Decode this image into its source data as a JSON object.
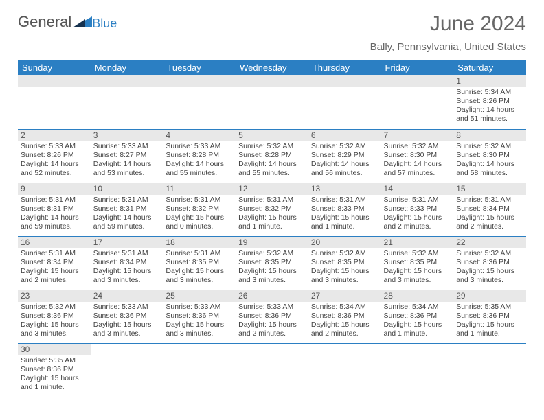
{
  "logo": {
    "text1": "General",
    "text2": "Blue"
  },
  "title": "June 2024",
  "location": "Bally, Pennsylvania, United States",
  "colors": {
    "header_bg": "#2b7fc3",
    "header_fg": "#ffffff",
    "daynum_bg": "#e8e8e8",
    "rule": "#2b7fc3",
    "title_color": "#676767"
  },
  "day_headers": [
    "Sunday",
    "Monday",
    "Tuesday",
    "Wednesday",
    "Thursday",
    "Friday",
    "Saturday"
  ],
  "weeks": [
    [
      {
        "n": "",
        "sr": "",
        "ss": "",
        "dl": ""
      },
      {
        "n": "",
        "sr": "",
        "ss": "",
        "dl": ""
      },
      {
        "n": "",
        "sr": "",
        "ss": "",
        "dl": ""
      },
      {
        "n": "",
        "sr": "",
        "ss": "",
        "dl": ""
      },
      {
        "n": "",
        "sr": "",
        "ss": "",
        "dl": ""
      },
      {
        "n": "",
        "sr": "",
        "ss": "",
        "dl": ""
      },
      {
        "n": "1",
        "sr": "Sunrise: 5:34 AM",
        "ss": "Sunset: 8:26 PM",
        "dl": "Daylight: 14 hours and 51 minutes."
      }
    ],
    [
      {
        "n": "2",
        "sr": "Sunrise: 5:33 AM",
        "ss": "Sunset: 8:26 PM",
        "dl": "Daylight: 14 hours and 52 minutes."
      },
      {
        "n": "3",
        "sr": "Sunrise: 5:33 AM",
        "ss": "Sunset: 8:27 PM",
        "dl": "Daylight: 14 hours and 53 minutes."
      },
      {
        "n": "4",
        "sr": "Sunrise: 5:33 AM",
        "ss": "Sunset: 8:28 PM",
        "dl": "Daylight: 14 hours and 55 minutes."
      },
      {
        "n": "5",
        "sr": "Sunrise: 5:32 AM",
        "ss": "Sunset: 8:28 PM",
        "dl": "Daylight: 14 hours and 55 minutes."
      },
      {
        "n": "6",
        "sr": "Sunrise: 5:32 AM",
        "ss": "Sunset: 8:29 PM",
        "dl": "Daylight: 14 hours and 56 minutes."
      },
      {
        "n": "7",
        "sr": "Sunrise: 5:32 AM",
        "ss": "Sunset: 8:30 PM",
        "dl": "Daylight: 14 hours and 57 minutes."
      },
      {
        "n": "8",
        "sr": "Sunrise: 5:32 AM",
        "ss": "Sunset: 8:30 PM",
        "dl": "Daylight: 14 hours and 58 minutes."
      }
    ],
    [
      {
        "n": "9",
        "sr": "Sunrise: 5:31 AM",
        "ss": "Sunset: 8:31 PM",
        "dl": "Daylight: 14 hours and 59 minutes."
      },
      {
        "n": "10",
        "sr": "Sunrise: 5:31 AM",
        "ss": "Sunset: 8:31 PM",
        "dl": "Daylight: 14 hours and 59 minutes."
      },
      {
        "n": "11",
        "sr": "Sunrise: 5:31 AM",
        "ss": "Sunset: 8:32 PM",
        "dl": "Daylight: 15 hours and 0 minutes."
      },
      {
        "n": "12",
        "sr": "Sunrise: 5:31 AM",
        "ss": "Sunset: 8:32 PM",
        "dl": "Daylight: 15 hours and 1 minute."
      },
      {
        "n": "13",
        "sr": "Sunrise: 5:31 AM",
        "ss": "Sunset: 8:33 PM",
        "dl": "Daylight: 15 hours and 1 minute."
      },
      {
        "n": "14",
        "sr": "Sunrise: 5:31 AM",
        "ss": "Sunset: 8:33 PM",
        "dl": "Daylight: 15 hours and 2 minutes."
      },
      {
        "n": "15",
        "sr": "Sunrise: 5:31 AM",
        "ss": "Sunset: 8:34 PM",
        "dl": "Daylight: 15 hours and 2 minutes."
      }
    ],
    [
      {
        "n": "16",
        "sr": "Sunrise: 5:31 AM",
        "ss": "Sunset: 8:34 PM",
        "dl": "Daylight: 15 hours and 2 minutes."
      },
      {
        "n": "17",
        "sr": "Sunrise: 5:31 AM",
        "ss": "Sunset: 8:34 PM",
        "dl": "Daylight: 15 hours and 3 minutes."
      },
      {
        "n": "18",
        "sr": "Sunrise: 5:31 AM",
        "ss": "Sunset: 8:35 PM",
        "dl": "Daylight: 15 hours and 3 minutes."
      },
      {
        "n": "19",
        "sr": "Sunrise: 5:32 AM",
        "ss": "Sunset: 8:35 PM",
        "dl": "Daylight: 15 hours and 3 minutes."
      },
      {
        "n": "20",
        "sr": "Sunrise: 5:32 AM",
        "ss": "Sunset: 8:35 PM",
        "dl": "Daylight: 15 hours and 3 minutes."
      },
      {
        "n": "21",
        "sr": "Sunrise: 5:32 AM",
        "ss": "Sunset: 8:35 PM",
        "dl": "Daylight: 15 hours and 3 minutes."
      },
      {
        "n": "22",
        "sr": "Sunrise: 5:32 AM",
        "ss": "Sunset: 8:36 PM",
        "dl": "Daylight: 15 hours and 3 minutes."
      }
    ],
    [
      {
        "n": "23",
        "sr": "Sunrise: 5:32 AM",
        "ss": "Sunset: 8:36 PM",
        "dl": "Daylight: 15 hours and 3 minutes."
      },
      {
        "n": "24",
        "sr": "Sunrise: 5:33 AM",
        "ss": "Sunset: 8:36 PM",
        "dl": "Daylight: 15 hours and 3 minutes."
      },
      {
        "n": "25",
        "sr": "Sunrise: 5:33 AM",
        "ss": "Sunset: 8:36 PM",
        "dl": "Daylight: 15 hours and 3 minutes."
      },
      {
        "n": "26",
        "sr": "Sunrise: 5:33 AM",
        "ss": "Sunset: 8:36 PM",
        "dl": "Daylight: 15 hours and 2 minutes."
      },
      {
        "n": "27",
        "sr": "Sunrise: 5:34 AM",
        "ss": "Sunset: 8:36 PM",
        "dl": "Daylight: 15 hours and 2 minutes."
      },
      {
        "n": "28",
        "sr": "Sunrise: 5:34 AM",
        "ss": "Sunset: 8:36 PM",
        "dl": "Daylight: 15 hours and 1 minute."
      },
      {
        "n": "29",
        "sr": "Sunrise: 5:35 AM",
        "ss": "Sunset: 8:36 PM",
        "dl": "Daylight: 15 hours and 1 minute."
      }
    ],
    [
      {
        "n": "30",
        "sr": "Sunrise: 5:35 AM",
        "ss": "Sunset: 8:36 PM",
        "dl": "Daylight: 15 hours and 1 minute."
      },
      {
        "n": "",
        "sr": "",
        "ss": "",
        "dl": ""
      },
      {
        "n": "",
        "sr": "",
        "ss": "",
        "dl": ""
      },
      {
        "n": "",
        "sr": "",
        "ss": "",
        "dl": ""
      },
      {
        "n": "",
        "sr": "",
        "ss": "",
        "dl": ""
      },
      {
        "n": "",
        "sr": "",
        "ss": "",
        "dl": ""
      },
      {
        "n": "",
        "sr": "",
        "ss": "",
        "dl": ""
      }
    ]
  ]
}
